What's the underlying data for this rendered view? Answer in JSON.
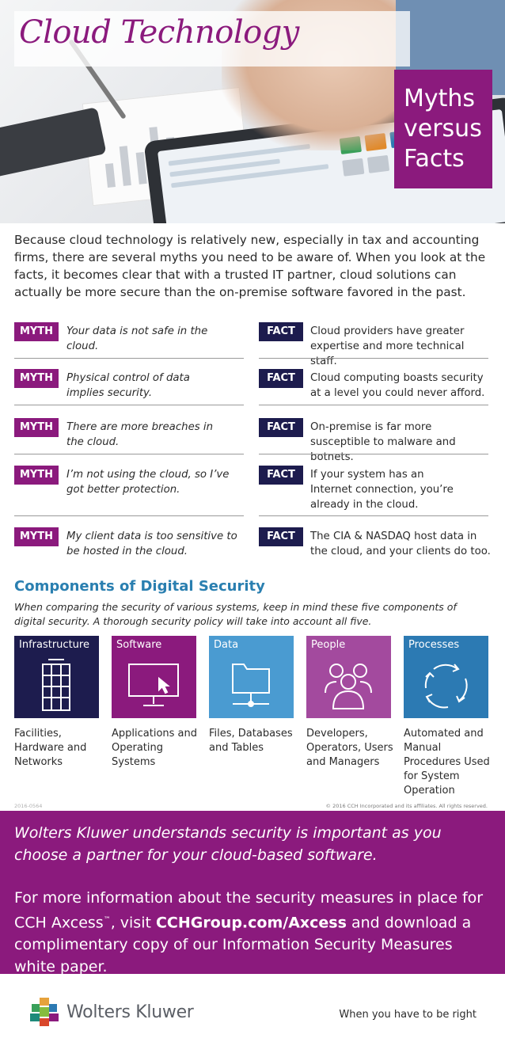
{
  "hero": {
    "title": "Cloud Technology",
    "myths_box": [
      "Myths",
      "versus",
      "Facts"
    ]
  },
  "intro": "Because cloud technology is relatively new, especially in tax and accounting firms, there are several myths you need to be aware of. When you look at the facts, it becomes clear that with a trusted IT partner, cloud solutions can actually be more secure than the on-premise software favored in the past.",
  "badges": {
    "myth": "MYTH",
    "fact": "FACT"
  },
  "pairs": [
    {
      "myth": "Your data is not safe in the cloud.",
      "fact": "Cloud providers have greater expertise and more technical staff."
    },
    {
      "myth": "Physical control of data implies security.",
      "fact": "Cloud computing boasts security at a level you could never afford."
    },
    {
      "myth": "There are more breaches in the cloud.",
      "fact": "On-premise is far more susceptible to malware and botnets."
    },
    {
      "myth": "I’m not using the cloud, so I’ve got better protection.",
      "fact": "If your system has an Internet connection, you’re already in the cloud."
    },
    {
      "myth": "My client data is too sensitive to be hosted in the cloud.",
      "fact": "The CIA & NASDAQ host data in the cloud, and your clients do too."
    }
  ],
  "components": {
    "title": "Components of Digital Security",
    "subtitle": "When comparing the security of various systems, keep in mind these five components of digital security. A thorough security policy will take into account all five.",
    "items": [
      {
        "label": "Infrastructure",
        "desc": "Facilities, Hardware and Networks",
        "color": "#1d1c4e"
      },
      {
        "label": "Software",
        "desc": "Applications and Operating Systems",
        "color": "#8b1a7d"
      },
      {
        "label": "Data",
        "desc": "Files, Databases and Tables",
        "color": "#4a9bd1"
      },
      {
        "label": "People",
        "desc": "Developers, Operators, Users and Managers",
        "color": "#a34a9e"
      },
      {
        "label": "Processes",
        "desc": "Automated and Manual Procedures Used for System Operation",
        "color": "#2c7ab3"
      }
    ]
  },
  "fineprint": {
    "left": "2016-0564",
    "right": "© 2016 CCH Incorporated and its affiliates. All rights reserved."
  },
  "band": {
    "p1": "Wolters Kluwer understands security is important as you choose a partner for your cloud-based software.",
    "p2_a": "For more information about the security measures in place for CCH Axcess",
    "p2_tm": "™",
    "p2_b": ", visit ",
    "p2_link": "CCHGroup.com/Axcess",
    "p2_c": " and download a complimentary copy of our Information Security Measures white paper."
  },
  "footer": {
    "brand": "Wolters Kluwer",
    "tagline": "When you have to be right"
  }
}
